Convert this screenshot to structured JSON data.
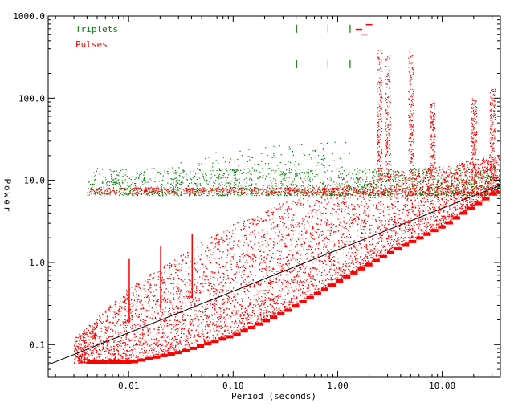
{
  "chart_data": {
    "type": "scatter",
    "xlabel": "Period (seconds)",
    "ylabel": "Power",
    "xscale": "log",
    "yscale": "log",
    "xlim": [
      0.0017,
      36
    ],
    "ylim": [
      0.04,
      1000
    ],
    "x_ticks": [
      {
        "value": 0.01,
        "label": "0.01"
      },
      {
        "value": 0.1,
        "label": "0.10"
      },
      {
        "value": 1,
        "label": "1.00"
      },
      {
        "value": 10,
        "label": "10.00"
      }
    ],
    "y_ticks": [
      {
        "value": 0.1,
        "label": "0.1"
      },
      {
        "value": 1,
        "label": "1.0"
      },
      {
        "value": 10,
        "label": "10.0"
      },
      {
        "value": 100,
        "label": "100.0"
      },
      {
        "value": 1000,
        "label": "1000.0"
      }
    ],
    "grid": false,
    "legend_placement": "top-left",
    "series": [
      {
        "name": "Triplets",
        "color": "#008000",
        "band": {
          "x_range": [
            0.004,
            36
          ],
          "power_min": 6.6,
          "power_typical": 9.5
        },
        "spikes": [
          {
            "x": 0.006,
            "power": 12.0
          },
          {
            "x": 0.01,
            "power": 13.0
          },
          {
            "x": 0.02,
            "power": 14.5
          },
          {
            "x": 0.04,
            "power": 17.0
          },
          {
            "x": 0.08,
            "power": 22.0
          },
          {
            "x": 0.15,
            "power": 26.0
          },
          {
            "x": 0.3,
            "power": 28.0
          },
          {
            "x": 0.5,
            "power": 30.0
          },
          {
            "x": 0.9,
            "power": 30.0
          }
        ],
        "high_marks": [
          {
            "x": 0.4,
            "power": 700
          },
          {
            "x": 0.4,
            "power": 260
          },
          {
            "x": 0.8,
            "power": 700
          },
          {
            "x": 0.8,
            "power": 260
          },
          {
            "x": 1.3,
            "power": 700
          },
          {
            "x": 1.3,
            "power": 260
          }
        ]
      },
      {
        "name": "Pulses",
        "color": "#ff0000",
        "envelope": [
          {
            "x": 0.003,
            "power_min": 0.06,
            "power_max": 0.12
          },
          {
            "x": 0.01,
            "power_min": 0.06,
            "power_max": 0.5
          },
          {
            "x": 0.03,
            "power_min": 0.08,
            "power_max": 1.2
          },
          {
            "x": 0.1,
            "power_min": 0.13,
            "power_max": 3.0
          },
          {
            "x": 0.3,
            "power_min": 0.25,
            "power_max": 5.5
          },
          {
            "x": 1,
            "power_min": 0.6,
            "power_max": 10.0
          },
          {
            "x": 3,
            "power_min": 1.3,
            "power_max": 13.0
          },
          {
            "x": 10,
            "power_min": 2.8,
            "power_max": 15.0
          },
          {
            "x": 30,
            "power_min": 7.0,
            "power_max": 20.0
          }
        ],
        "spikes": [
          {
            "x": 0.01,
            "power": 1.1
          },
          {
            "x": 0.02,
            "power": 1.6
          },
          {
            "x": 0.04,
            "power": 2.2
          }
        ],
        "band": {
          "x_range": [
            0.004,
            36
          ],
          "power": 7.5
        },
        "bursts": [
          {
            "x": 2.5,
            "power_max": 400
          },
          {
            "x": 3.0,
            "power_max": 350
          },
          {
            "x": 5.0,
            "power_max": 400
          },
          {
            "x": 8.0,
            "power_max": 90
          },
          {
            "x": 20.0,
            "power_max": 100
          },
          {
            "x": 30.0,
            "power_max": 130
          }
        ],
        "high_marks": [
          {
            "x": 1.6,
            "power": 700
          },
          {
            "x": 2.0,
            "power": 800
          },
          {
            "x": 1.8,
            "power": 600
          }
        ]
      },
      {
        "name": "",
        "type": "line",
        "color": "#000000",
        "points": [
          {
            "x": 0.0017,
            "power": 0.057
          },
          {
            "x": 36,
            "power": 8.7
          }
        ]
      }
    ]
  }
}
